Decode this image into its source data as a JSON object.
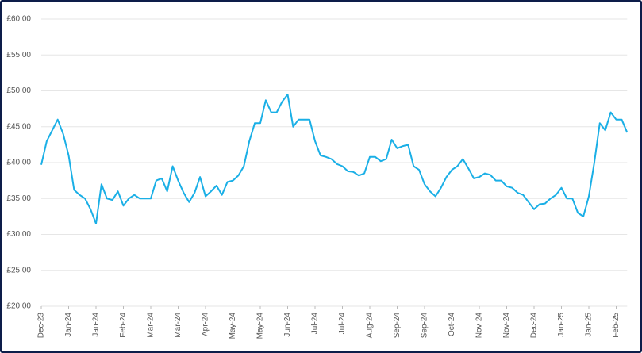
{
  "chart_data": {
    "type": "line",
    "categories": [
      "Dec-23",
      null,
      null,
      null,
      null,
      "Jan-24",
      null,
      null,
      null,
      null,
      "Jan-24",
      null,
      null,
      null,
      null,
      "Feb-24",
      null,
      null,
      null,
      null,
      "Mar-24",
      null,
      null,
      null,
      null,
      "Mar-24",
      null,
      null,
      null,
      null,
      "Apr-24",
      null,
      null,
      null,
      null,
      "May-24",
      null,
      null,
      null,
      null,
      "May-24",
      null,
      null,
      null,
      null,
      "Jun-24",
      null,
      null,
      null,
      null,
      "Jul-24",
      null,
      null,
      null,
      null,
      "Jul-24",
      null,
      null,
      null,
      null,
      "Aug-24",
      null,
      null,
      null,
      null,
      "Sep-24",
      null,
      null,
      null,
      null,
      "Sep-24",
      null,
      null,
      null,
      null,
      "Oct-24",
      null,
      null,
      null,
      null,
      "Nov-24",
      null,
      null,
      null,
      null,
      "Nov-24",
      null,
      null,
      null,
      null,
      "Dec-24",
      null,
      null,
      null,
      null,
      "Jan-25",
      null,
      null,
      null,
      null,
      "Jan-25",
      null,
      null,
      null,
      null,
      "Feb-25",
      null,
      null
    ],
    "series": [
      {
        "color": "#1aafe6",
        "values": [
          39.7,
          43.0,
          44.5,
          46.0,
          44.0,
          41.0,
          36.2,
          35.5,
          35.0,
          33.5,
          31.5,
          37.0,
          35.0,
          34.8,
          36.0,
          34.0,
          35.0,
          35.5,
          35.0,
          35.0,
          35.0,
          37.5,
          37.8,
          36.0,
          39.5,
          37.5,
          35.8,
          34.5,
          35.8,
          38.0,
          35.3,
          36.0,
          36.8,
          35.5,
          37.3,
          37.5,
          38.2,
          39.5,
          43.0,
          45.5,
          45.5,
          48.7,
          47.0,
          47.0,
          48.5,
          49.5,
          45.0,
          46.0,
          46.0,
          46.0,
          43.0,
          41.0,
          40.8,
          40.5,
          39.8,
          39.5,
          38.8,
          38.7,
          38.2,
          38.5,
          40.8,
          40.8,
          40.2,
          40.5,
          43.2,
          42.0,
          42.3,
          42.5,
          39.5,
          39.0,
          37.0,
          36.0,
          35.3,
          36.5,
          38.0,
          39.0,
          39.5,
          40.5,
          39.2,
          37.8,
          38.0,
          38.5,
          38.3,
          37.5,
          37.5,
          36.7,
          36.5,
          35.8,
          35.5,
          34.5,
          33.5,
          34.2,
          34.3,
          35.0,
          35.5,
          36.5,
          35.0,
          35.0,
          33.0,
          32.5,
          35.3,
          40.0,
          45.5,
          44.5,
          47.0,
          46.0,
          46.0,
          44.2
        ]
      }
    ],
    "ylim": [
      20,
      60
    ],
    "yticks": [
      {
        "value": 20,
        "label": "£20.00"
      },
      {
        "value": 25,
        "label": "£25.00"
      },
      {
        "value": 30,
        "label": "£30.00"
      },
      {
        "value": 35,
        "label": "£35.00"
      },
      {
        "value": 40,
        "label": "£40.00"
      },
      {
        "value": 45,
        "label": "£45.00"
      },
      {
        "value": 50,
        "label": "£50.00"
      },
      {
        "value": 55,
        "label": "£55.00"
      },
      {
        "value": 60,
        "label": "£60.00"
      }
    ],
    "grid": true
  }
}
